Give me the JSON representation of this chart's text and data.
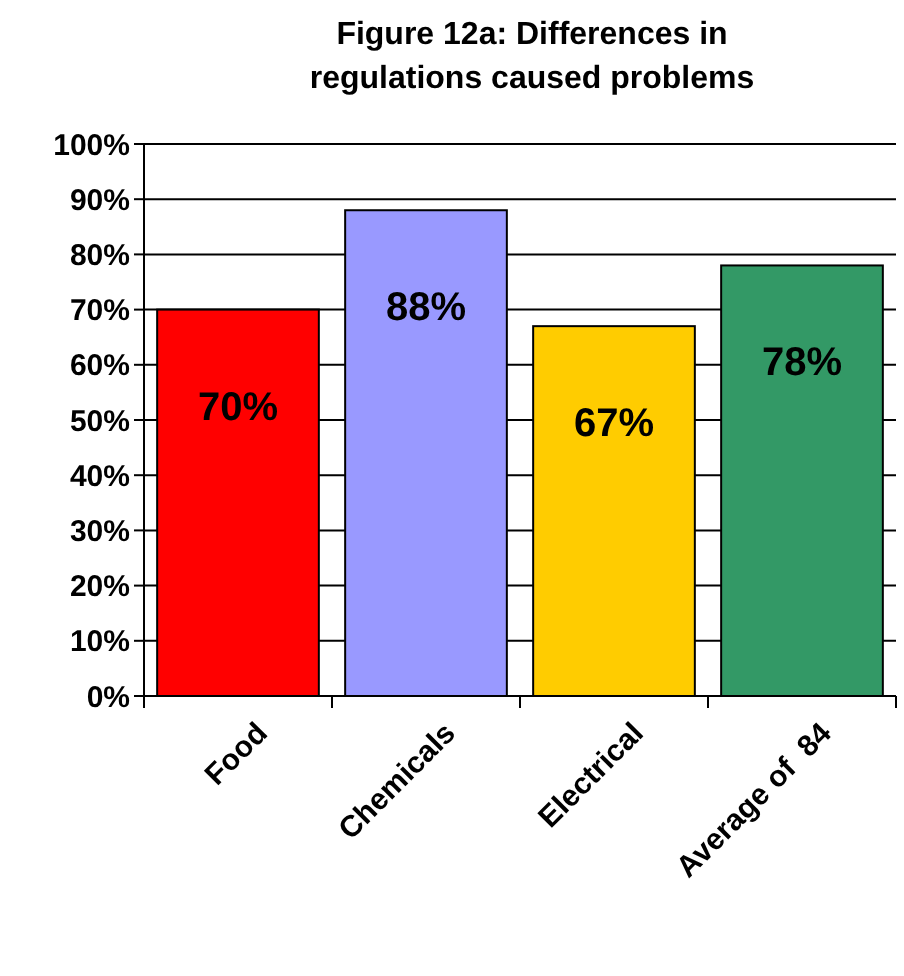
{
  "chart_data": {
    "type": "bar",
    "title": "Figure 12a: Differences in regulations caused problems",
    "categories": [
      "Food",
      "Chemicals",
      "Electrical",
      "Average of  84"
    ],
    "values": [
      70,
      88,
      67,
      78
    ],
    "colors": [
      "#ff0000",
      "#9999ff",
      "#ffcc00",
      "#339966"
    ],
    "value_labels": [
      "70%",
      "88%",
      "67%",
      "78%"
    ],
    "ylim": [
      0,
      100
    ],
    "yticks": [
      {
        "value": 0,
        "label": "0%"
      },
      {
        "value": 10,
        "label": "10%"
      },
      {
        "value": 20,
        "label": "20%"
      },
      {
        "value": 30,
        "label": "30%"
      },
      {
        "value": 40,
        "label": "40%"
      },
      {
        "value": 50,
        "label": "50%"
      },
      {
        "value": 60,
        "label": "60%"
      },
      {
        "value": 70,
        "label": "70%"
      },
      {
        "value": 80,
        "label": "80%"
      },
      {
        "value": 90,
        "label": "90%"
      },
      {
        "value": 100,
        "label": "100%"
      }
    ],
    "grid": "y"
  }
}
